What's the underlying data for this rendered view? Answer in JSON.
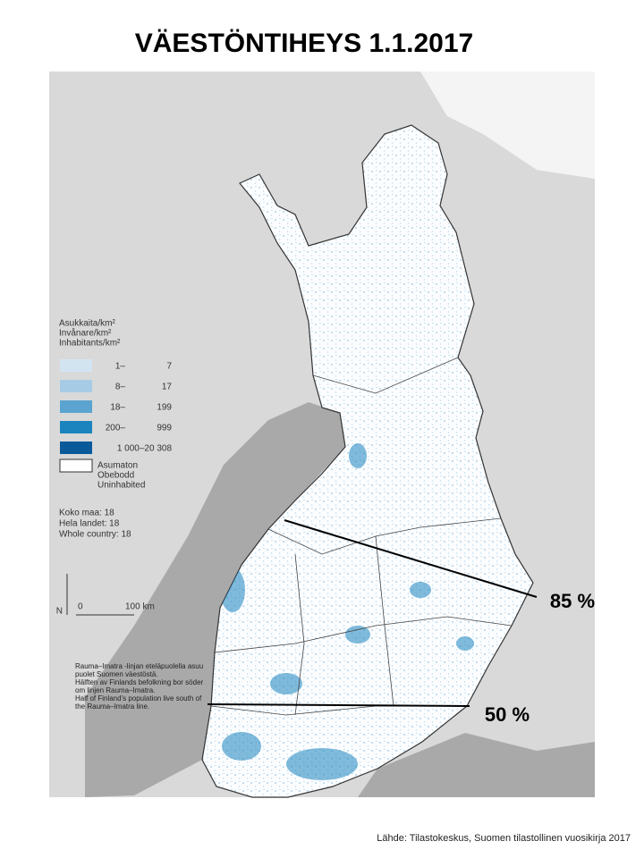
{
  "title": "VÄESTÖNTIHEYS 1.1.2017",
  "legend": {
    "heading": [
      "Asukkaita/km²",
      "Invånare/km²",
      "Inhabitants/km²"
    ],
    "items": [
      {
        "from": "1–",
        "to": "7",
        "color": "#d3e4f1"
      },
      {
        "from": "8–",
        "to": "17",
        "color": "#a6cbe4"
      },
      {
        "from": "18–",
        "to": "199",
        "color": "#5aa4cf"
      },
      {
        "from": "200–",
        "to": "999",
        "color": "#1b84bf"
      },
      {
        "from": "1 000–20 308",
        "to": "",
        "color": "#0a5a9a"
      }
    ],
    "uninhabited": [
      "Asumaton",
      "Obebodd",
      "Uninhabited"
    ]
  },
  "totals": [
    "Koko maa: 18",
    "Hela landet: 18",
    "Whole country: 18"
  ],
  "scale": {
    "north": "N",
    "zero": "0",
    "distance": "100 km"
  },
  "note": [
    "Rauma–Imatra -linjan eteläpuolella asuu",
    "puolet Suomen väestöstä.",
    "Hälften av Finlands befolkning bor söder",
    "om linjen Rauma–Imatra.",
    "Half of Finland's population live south of",
    "the Rauma–Imatra line."
  ],
  "lines": [
    {
      "label": "85 %"
    },
    {
      "label": "50 %"
    }
  ],
  "source": "Lähde: Tilastokeskus, Suomen tilastollinen vuosikirja 2017"
}
